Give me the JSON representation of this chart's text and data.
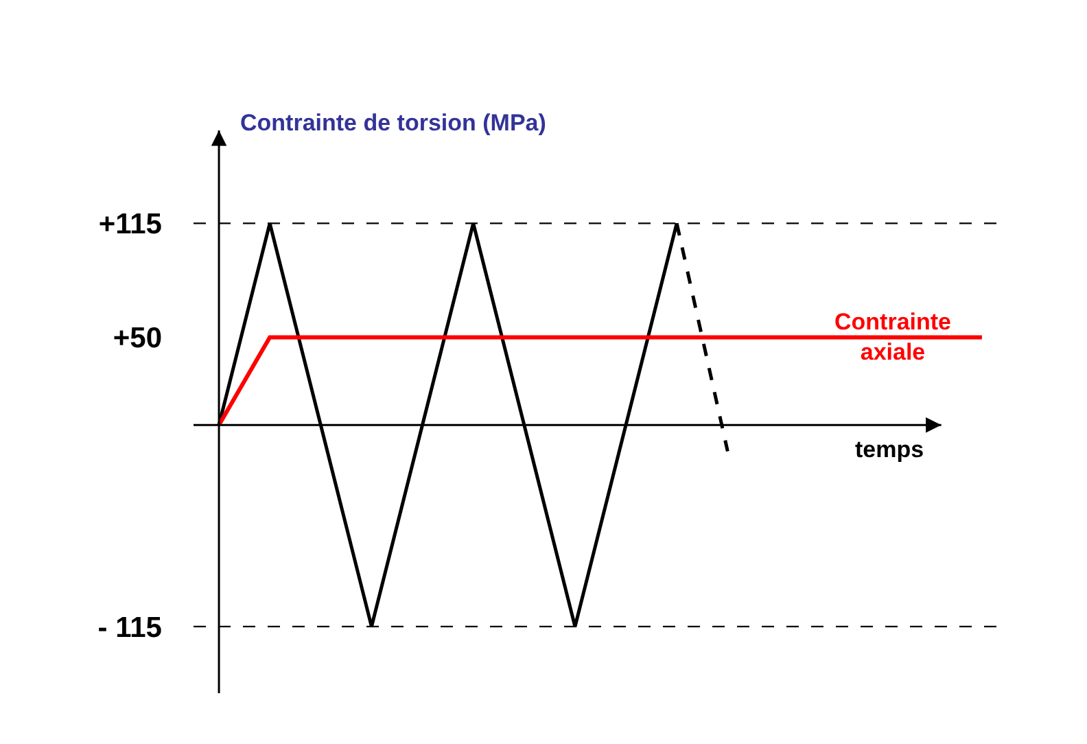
{
  "chart_data": {
    "type": "line",
    "xlabel": "temps",
    "ylabel": "Contrainte de torsion (MPa)",
    "categories": [
      null,
      null,
      null,
      null,
      null,
      null,
      null,
      null,
      null,
      null,
      null,
      null,
      null,
      null,
      null,
      null
    ],
    "ylim": [
      -153,
      168
    ],
    "yticks": [
      {
        "value": 115,
        "label": "+115"
      },
      {
        "value": 50,
        "label": "+50"
      },
      {
        "value": -115,
        "label": "- 115"
      }
    ],
    "tick_labels": "y",
    "grid": false,
    "legend": false,
    "marker": "none",
    "series": [
      {
        "color": "#000000",
        "values": [
          0,
          115,
          0,
          -115,
          0,
          115,
          0,
          -115,
          0,
          115,
          null,
          null,
          null,
          null,
          null,
          null
        ],
        "line_style": "solid"
      },
      {
        "color": "#000000",
        "values": [
          null,
          null,
          null,
          null,
          null,
          null,
          null,
          null,
          null,
          115,
          -15,
          null,
          null,
          null,
          null,
          null
        ],
        "line_style": "dashed"
      },
      {
        "name": "Contrainte\naxiale",
        "color": "#ff0000",
        "values": [
          0,
          50,
          50,
          50,
          50,
          50,
          50,
          50,
          50,
          50,
          50,
          50,
          50,
          50,
          50,
          50
        ],
        "line_style": "solid"
      }
    ],
    "ref_lines": [
      {
        "axis": "y",
        "value": 115,
        "color": "#000000",
        "line_style": "dashed"
      },
      {
        "axis": "y",
        "value": -115,
        "color": "#000000",
        "line_style": "dashed"
      }
    ]
  }
}
